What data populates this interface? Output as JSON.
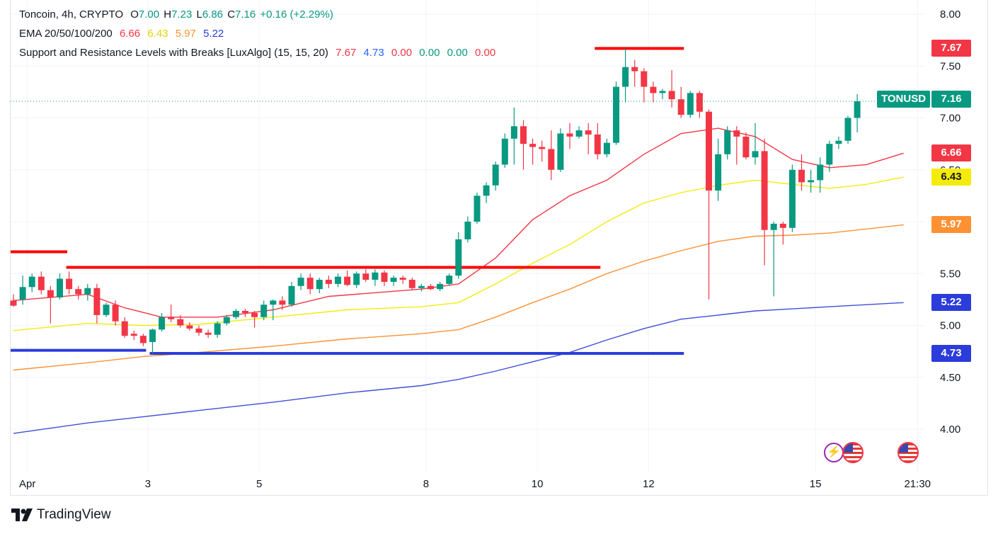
{
  "header": {
    "symbol_line": {
      "name": "Toncoin, 4h, CRYPTO",
      "open_label": "O",
      "open": "7.00",
      "high_label": "H",
      "high": "7.23",
      "low_label": "L",
      "low": "6.86",
      "close_label": "C",
      "close": "7.16",
      "change": "+0.16 (+2.29%)"
    },
    "ema_line": {
      "name": "EMA 20/50/100/200",
      "values": [
        "6.66",
        "6.43",
        "5.97",
        "5.22"
      ]
    },
    "sr_line": {
      "name": "Support and Resistance Levels with Breaks [LuxAlgo] (15, 15, 20)",
      "values": [
        "7.67",
        "4.73",
        "0.00",
        "0.00",
        "0.00",
        "0.00"
      ]
    }
  },
  "colors": {
    "up": "#089981",
    "down": "#f23645",
    "ema20": "#f23645",
    "ema50": "#f5eb0a",
    "ema100": "#ff9133",
    "ema200": "#3f4fd8",
    "resistance": "#ff0000",
    "support": "#2b3cdb",
    "sr_blue_text": "#2962ff",
    "sr_red_text": "#f23645",
    "sr_green_text": "#089981"
  },
  "price_axis": {
    "ticks": [
      "8.00",
      "7.50",
      "7.00",
      "6.50",
      "5.50",
      "5.00",
      "4.50",
      "4.00"
    ],
    "tags": [
      {
        "label": "7.67",
        "value": 7.67,
        "bg": "#f23645",
        "fg": "#ffffff"
      },
      {
        "label": "6.66",
        "value": 6.66,
        "bg": "#f23645",
        "fg": "#ffffff"
      },
      {
        "label": "6.43",
        "value": 6.43,
        "bg": "#f5eb0a",
        "fg": "#131722"
      },
      {
        "label": "5.97",
        "value": 5.97,
        "bg": "#ff9133",
        "fg": "#ffffff"
      },
      {
        "label": "5.22",
        "value": 5.22,
        "bg": "#2b3cdb",
        "fg": "#ffffff"
      },
      {
        "label": "4.73",
        "value": 4.73,
        "bg": "#2b3cdb",
        "fg": "#ffffff"
      }
    ],
    "last_price": {
      "ticker": "TONUSD",
      "label": "7.16",
      "value": 7.16
    }
  },
  "time_axis": {
    "ticks": [
      {
        "label": "Apr",
        "bar": 1.5
      },
      {
        "label": "3",
        "bar": 14.5
      },
      {
        "label": "5",
        "bar": 26.5
      },
      {
        "label": "8",
        "bar": 44.5
      },
      {
        "label": "10",
        "bar": 56.5
      },
      {
        "label": "12",
        "bar": 68.5
      },
      {
        "label": "15",
        "bar": 86.5
      },
      {
        "label": "21:30",
        "bar": 97.5
      }
    ]
  },
  "events": [
    "lightning-event",
    "us-flag-event",
    "us-flag-event"
  ],
  "brand": "TradingView",
  "chart_data": {
    "type": "candlestick",
    "title": "Toncoin, 4h, CRYPTO",
    "ylim": [
      3.7,
      8.1
    ],
    "candles": [
      {
        "o": 5.24,
        "h": 5.3,
        "l": 5.18,
        "c": 5.19
      },
      {
        "o": 5.25,
        "h": 5.48,
        "l": 5.2,
        "c": 5.37
      },
      {
        "o": 5.37,
        "h": 5.5,
        "l": 5.32,
        "c": 5.47
      },
      {
        "o": 5.47,
        "h": 5.52,
        "l": 5.3,
        "c": 5.34
      },
      {
        "o": 5.34,
        "h": 5.38,
        "l": 5.02,
        "c": 5.27
      },
      {
        "o": 5.27,
        "h": 5.5,
        "l": 5.25,
        "c": 5.45
      },
      {
        "o": 5.45,
        "h": 5.52,
        "l": 5.3,
        "c": 5.35
      },
      {
        "o": 5.35,
        "h": 5.38,
        "l": 5.25,
        "c": 5.3
      },
      {
        "o": 5.3,
        "h": 5.4,
        "l": 5.24,
        "c": 5.36
      },
      {
        "o": 5.36,
        "h": 5.4,
        "l": 5.02,
        "c": 5.1
      },
      {
        "o": 5.1,
        "h": 5.22,
        "l": 5.08,
        "c": 5.2
      },
      {
        "o": 5.2,
        "h": 5.24,
        "l": 5.0,
        "c": 5.04
      },
      {
        "o": 5.04,
        "h": 5.08,
        "l": 4.88,
        "c": 4.9
      },
      {
        "o": 4.92,
        "h": 4.95,
        "l": 4.86,
        "c": 4.9
      },
      {
        "o": 4.9,
        "h": 4.92,
        "l": 4.8,
        "c": 4.83
      },
      {
        "o": 4.84,
        "h": 4.97,
        "l": 4.73,
        "c": 4.96
      },
      {
        "o": 4.96,
        "h": 5.12,
        "l": 4.94,
        "c": 5.08
      },
      {
        "o": 5.08,
        "h": 5.2,
        "l": 5.03,
        "c": 5.06
      },
      {
        "o": 5.06,
        "h": 5.1,
        "l": 4.98,
        "c": 5.0
      },
      {
        "o": 5.0,
        "h": 5.03,
        "l": 4.95,
        "c": 4.97
      },
      {
        "o": 4.97,
        "h": 5.0,
        "l": 4.9,
        "c": 4.93
      },
      {
        "o": 4.93,
        "h": 4.96,
        "l": 4.88,
        "c": 4.91
      },
      {
        "o": 4.91,
        "h": 5.04,
        "l": 4.88,
        "c": 5.02
      },
      {
        "o": 5.02,
        "h": 5.1,
        "l": 5.0,
        "c": 5.08
      },
      {
        "o": 5.08,
        "h": 5.16,
        "l": 5.06,
        "c": 5.14
      },
      {
        "o": 5.14,
        "h": 5.16,
        "l": 5.08,
        "c": 5.12
      },
      {
        "o": 5.12,
        "h": 5.14,
        "l": 4.98,
        "c": 5.08
      },
      {
        "o": 5.08,
        "h": 5.24,
        "l": 5.05,
        "c": 5.2
      },
      {
        "o": 5.2,
        "h": 5.25,
        "l": 5.05,
        "c": 5.24
      },
      {
        "o": 5.24,
        "h": 5.28,
        "l": 5.15,
        "c": 5.2
      },
      {
        "o": 5.2,
        "h": 5.42,
        "l": 5.18,
        "c": 5.38
      },
      {
        "o": 5.38,
        "h": 5.5,
        "l": 5.34,
        "c": 5.46
      },
      {
        "o": 5.46,
        "h": 5.5,
        "l": 5.3,
        "c": 5.35
      },
      {
        "o": 5.35,
        "h": 5.46,
        "l": 5.31,
        "c": 5.44
      },
      {
        "o": 5.44,
        "h": 5.48,
        "l": 5.36,
        "c": 5.4
      },
      {
        "o": 5.4,
        "h": 5.5,
        "l": 5.37,
        "c": 5.47
      },
      {
        "o": 5.47,
        "h": 5.53,
        "l": 5.38,
        "c": 5.39
      },
      {
        "o": 5.39,
        "h": 5.52,
        "l": 5.36,
        "c": 5.5
      },
      {
        "o": 5.5,
        "h": 5.54,
        "l": 5.42,
        "c": 5.44
      },
      {
        "o": 5.44,
        "h": 5.54,
        "l": 5.38,
        "c": 5.51
      },
      {
        "o": 5.51,
        "h": 5.53,
        "l": 5.38,
        "c": 5.42
      },
      {
        "o": 5.42,
        "h": 5.48,
        "l": 5.38,
        "c": 5.46
      },
      {
        "o": 5.46,
        "h": 5.48,
        "l": 5.4,
        "c": 5.44
      },
      {
        "o": 5.44,
        "h": 5.46,
        "l": 5.34,
        "c": 5.36
      },
      {
        "o": 5.36,
        "h": 5.4,
        "l": 5.33,
        "c": 5.38
      },
      {
        "o": 5.38,
        "h": 5.4,
        "l": 5.34,
        "c": 5.35
      },
      {
        "o": 5.35,
        "h": 5.42,
        "l": 5.33,
        "c": 5.4
      },
      {
        "o": 5.4,
        "h": 5.5,
        "l": 5.38,
        "c": 5.48
      },
      {
        "o": 5.48,
        "h": 5.9,
        "l": 5.45,
        "c": 5.83
      },
      {
        "o": 5.83,
        "h": 6.05,
        "l": 5.8,
        "c": 6.0
      },
      {
        "o": 6.0,
        "h": 6.28,
        "l": 5.98,
        "c": 6.25
      },
      {
        "o": 6.25,
        "h": 6.38,
        "l": 6.18,
        "c": 6.35
      },
      {
        "o": 6.35,
        "h": 6.58,
        "l": 6.3,
        "c": 6.55
      },
      {
        "o": 6.55,
        "h": 6.85,
        "l": 6.52,
        "c": 6.8
      },
      {
        "o": 6.8,
        "h": 7.1,
        "l": 6.55,
        "c": 6.92
      },
      {
        "o": 6.92,
        "h": 6.98,
        "l": 6.5,
        "c": 6.75
      },
      {
        "o": 6.75,
        "h": 6.8,
        "l": 6.55,
        "c": 6.72
      },
      {
        "o": 6.72,
        "h": 6.78,
        "l": 6.58,
        "c": 6.7
      },
      {
        "o": 6.7,
        "h": 6.88,
        "l": 6.4,
        "c": 6.5
      },
      {
        "o": 6.5,
        "h": 6.9,
        "l": 6.48,
        "c": 6.85
      },
      {
        "o": 6.85,
        "h": 6.95,
        "l": 6.7,
        "c": 6.82
      },
      {
        "o": 6.82,
        "h": 6.92,
        "l": 6.8,
        "c": 6.88
      },
      {
        "o": 6.88,
        "h": 6.95,
        "l": 6.65,
        "c": 6.84
      },
      {
        "o": 6.84,
        "h": 6.95,
        "l": 6.6,
        "c": 6.65
      },
      {
        "o": 6.65,
        "h": 6.8,
        "l": 6.62,
        "c": 6.76
      },
      {
        "o": 6.76,
        "h": 7.35,
        "l": 6.74,
        "c": 7.3
      },
      {
        "o": 7.3,
        "h": 7.67,
        "l": 7.15,
        "c": 7.49
      },
      {
        "o": 7.49,
        "h": 7.56,
        "l": 7.3,
        "c": 7.45
      },
      {
        "o": 7.45,
        "h": 7.48,
        "l": 7.15,
        "c": 7.3
      },
      {
        "o": 7.3,
        "h": 7.35,
        "l": 7.15,
        "c": 7.24
      },
      {
        "o": 7.24,
        "h": 7.28,
        "l": 7.18,
        "c": 7.26
      },
      {
        "o": 7.26,
        "h": 7.46,
        "l": 7.1,
        "c": 7.18
      },
      {
        "o": 7.18,
        "h": 7.3,
        "l": 7.0,
        "c": 7.03
      },
      {
        "o": 7.03,
        "h": 7.26,
        "l": 7.0,
        "c": 7.24
      },
      {
        "o": 7.24,
        "h": 7.26,
        "l": 7.0,
        "c": 7.06
      },
      {
        "o": 7.06,
        "h": 7.08,
        "l": 5.25,
        "c": 6.3
      },
      {
        "o": 6.3,
        "h": 6.8,
        "l": 6.2,
        "c": 6.65
      },
      {
        "o": 6.65,
        "h": 6.92,
        "l": 6.6,
        "c": 6.88
      },
      {
        "o": 6.88,
        "h": 6.92,
        "l": 6.55,
        "c": 6.82
      },
      {
        "o": 6.82,
        "h": 6.86,
        "l": 6.6,
        "c": 6.62
      },
      {
        "o": 6.62,
        "h": 6.95,
        "l": 6.55,
        "c": 6.68
      },
      {
        "o": 6.68,
        "h": 6.8,
        "l": 5.58,
        "c": 5.92
      },
      {
        "o": 5.92,
        "h": 6.0,
        "l": 5.28,
        "c": 5.98
      },
      {
        "o": 5.98,
        "h": 6.0,
        "l": 5.78,
        "c": 5.94
      },
      {
        "o": 5.94,
        "h": 6.55,
        "l": 5.9,
        "c": 6.5
      },
      {
        "o": 6.5,
        "h": 6.65,
        "l": 6.3,
        "c": 6.38
      },
      {
        "o": 6.38,
        "h": 6.5,
        "l": 6.28,
        "c": 6.4
      },
      {
        "o": 6.4,
        "h": 6.62,
        "l": 6.28,
        "c": 6.55
      },
      {
        "o": 6.55,
        "h": 6.78,
        "l": 6.48,
        "c": 6.75
      },
      {
        "o": 6.75,
        "h": 6.82,
        "l": 6.7,
        "c": 6.78
      },
      {
        "o": 6.78,
        "h": 7.02,
        "l": 6.75,
        "c": 7.0
      },
      {
        "o": 7.0,
        "h": 7.23,
        "l": 6.86,
        "c": 7.16
      }
    ],
    "ema_series": [
      {
        "name": "EMA 20",
        "color": "#f23645",
        "points": [
          [
            0,
            5.24
          ],
          [
            8,
            5.3
          ],
          [
            12,
            5.17
          ],
          [
            16,
            5.08
          ],
          [
            22,
            5.08
          ],
          [
            28,
            5.15
          ],
          [
            34,
            5.28
          ],
          [
            44,
            5.35
          ],
          [
            48,
            5.4
          ],
          [
            52,
            5.65
          ],
          [
            56,
            6.02
          ],
          [
            60,
            6.25
          ],
          [
            64,
            6.4
          ],
          [
            68,
            6.65
          ],
          [
            72,
            6.85
          ],
          [
            76,
            6.9
          ],
          [
            80,
            6.82
          ],
          [
            84,
            6.6
          ],
          [
            88,
            6.52
          ],
          [
            92,
            6.55
          ],
          [
            96,
            6.66
          ]
        ]
      },
      {
        "name": "EMA 50",
        "color": "#f5eb0a",
        "points": [
          [
            0,
            4.95
          ],
          [
            8,
            5.02
          ],
          [
            14,
            5.0
          ],
          [
            20,
            5.01
          ],
          [
            28,
            5.08
          ],
          [
            36,
            5.15
          ],
          [
            44,
            5.18
          ],
          [
            48,
            5.22
          ],
          [
            52,
            5.4
          ],
          [
            56,
            5.6
          ],
          [
            60,
            5.78
          ],
          [
            64,
            6.0
          ],
          [
            68,
            6.18
          ],
          [
            72,
            6.28
          ],
          [
            76,
            6.35
          ],
          [
            80,
            6.4
          ],
          [
            84,
            6.36
          ],
          [
            88,
            6.32
          ],
          [
            92,
            6.36
          ],
          [
            96,
            6.43
          ]
        ]
      },
      {
        "name": "EMA 100",
        "color": "#ff9133",
        "points": [
          [
            0,
            4.57
          ],
          [
            8,
            4.64
          ],
          [
            14,
            4.7
          ],
          [
            20,
            4.74
          ],
          [
            28,
            4.8
          ],
          [
            36,
            4.87
          ],
          [
            44,
            4.92
          ],
          [
            48,
            4.96
          ],
          [
            52,
            5.08
          ],
          [
            56,
            5.22
          ],
          [
            60,
            5.35
          ],
          [
            64,
            5.5
          ],
          [
            68,
            5.62
          ],
          [
            72,
            5.72
          ],
          [
            76,
            5.81
          ],
          [
            80,
            5.86
          ],
          [
            84,
            5.87
          ],
          [
            88,
            5.89
          ],
          [
            92,
            5.93
          ],
          [
            96,
            5.97
          ]
        ]
      },
      {
        "name": "EMA 200",
        "color": "#3f4fd8",
        "points": [
          [
            0,
            3.96
          ],
          [
            8,
            4.06
          ],
          [
            14,
            4.12
          ],
          [
            20,
            4.18
          ],
          [
            28,
            4.26
          ],
          [
            36,
            4.35
          ],
          [
            44,
            4.42
          ],
          [
            48,
            4.48
          ],
          [
            52,
            4.56
          ],
          [
            56,
            4.65
          ],
          [
            60,
            4.74
          ],
          [
            64,
            4.86
          ],
          [
            68,
            4.97
          ],
          [
            72,
            5.06
          ],
          [
            76,
            5.1
          ],
          [
            80,
            5.14
          ],
          [
            84,
            5.16
          ],
          [
            88,
            5.18
          ],
          [
            92,
            5.2
          ],
          [
            96,
            5.22
          ]
        ]
      }
    ],
    "levels": [
      {
        "kind": "resistance",
        "value": 5.71,
        "from": 0,
        "to": 5.5
      },
      {
        "kind": "resistance",
        "value": 5.56,
        "from": 6,
        "to": 63
      },
      {
        "kind": "resistance",
        "value": 7.67,
        "from": 63,
        "to": 72
      },
      {
        "kind": "support",
        "value": 4.76,
        "from": 0,
        "to": 14
      },
      {
        "kind": "support",
        "value": 4.73,
        "from": 15,
        "to": 72
      }
    ]
  }
}
